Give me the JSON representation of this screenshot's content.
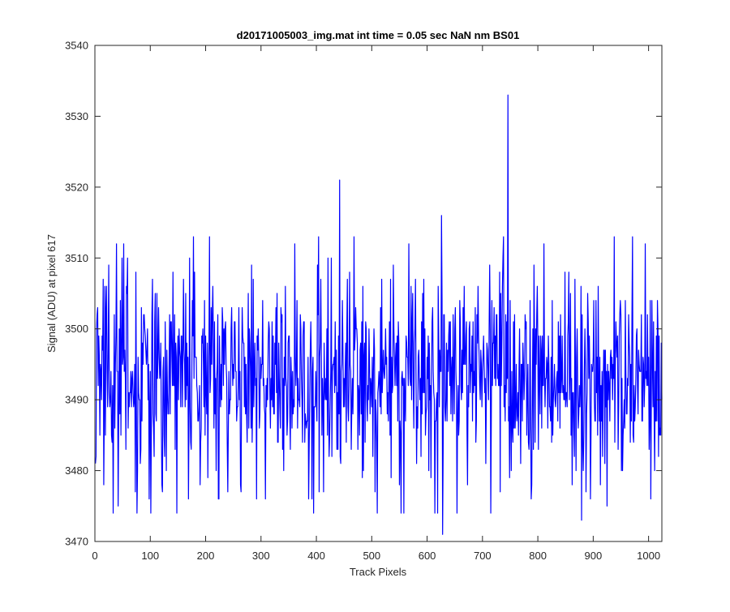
{
  "chart_data": {
    "type": "line",
    "title": "d20171005003_img.mat int time = 0.05 sec  NaN nm BS01",
    "xlabel": "Track Pixels",
    "ylabel": "Signal (ADU) at pixel 617",
    "xlim": [
      0,
      1024
    ],
    "ylim": [
      3470,
      3540
    ],
    "xticks": [
      0,
      100,
      200,
      300,
      400,
      500,
      600,
      700,
      800,
      900,
      1000
    ],
    "yticks": [
      3470,
      3480,
      3490,
      3500,
      3510,
      3520,
      3530,
      3540
    ],
    "grid": false,
    "legend": false,
    "series": [
      {
        "color": "#0000ff",
        "line_width": 1.2,
        "n_points": 1024,
        "mean": 3493,
        "noise_std": 7,
        "seed": 617,
        "anchors": [
          {
            "x": 1,
            "y": 3481
          },
          {
            "x": 9,
            "y": 3485
          },
          {
            "x": 16,
            "y": 3478
          },
          {
            "x": 33,
            "y": 3474
          },
          {
            "x": 49,
            "y": 3510
          },
          {
            "x": 73,
            "y": 3477
          },
          {
            "x": 98,
            "y": 3476
          },
          {
            "x": 101,
            "y": 3474
          },
          {
            "x": 178,
            "y": 3513
          },
          {
            "x": 207,
            "y": 3513
          },
          {
            "x": 223,
            "y": 3476
          },
          {
            "x": 264,
            "y": 3477
          },
          {
            "x": 292,
            "y": 3476
          },
          {
            "x": 386,
            "y": 3476
          },
          {
            "x": 404,
            "y": 3513
          },
          {
            "x": 442,
            "y": 3521
          },
          {
            "x": 468,
            "y": 3513
          },
          {
            "x": 553,
            "y": 3474
          },
          {
            "x": 558,
            "y": 3474
          },
          {
            "x": 614,
            "y": 3474
          },
          {
            "x": 619,
            "y": 3474
          },
          {
            "x": 626,
            "y": 3516
          },
          {
            "x": 628,
            "y": 3471
          },
          {
            "x": 654,
            "y": 3474
          },
          {
            "x": 715,
            "y": 3474
          },
          {
            "x": 738,
            "y": 3513
          },
          {
            "x": 746,
            "y": 3533
          },
          {
            "x": 788,
            "y": 3476
          },
          {
            "x": 879,
            "y": 3473
          },
          {
            "x": 895,
            "y": 3476
          },
          {
            "x": 925,
            "y": 3475
          },
          {
            "x": 938,
            "y": 3513
          },
          {
            "x": 971,
            "y": 3513
          },
          {
            "x": 1004,
            "y": 3476
          },
          {
            "x": 1022,
            "y": 3485
          }
        ]
      }
    ]
  }
}
